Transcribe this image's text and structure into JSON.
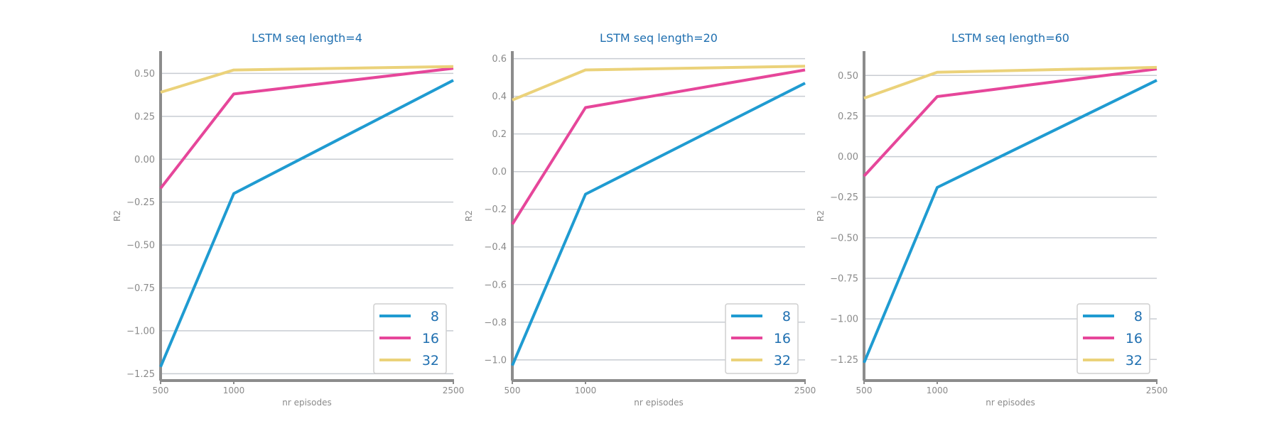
{
  "chart_data": [
    {
      "type": "line",
      "title": "LSTM seq length=4",
      "xlabel": "nr episodes",
      "ylabel": "R2",
      "x": [
        500,
        1000,
        2500
      ],
      "xticks": [
        "500",
        "1000",
        "2500"
      ],
      "xlim": [
        500,
        2500
      ],
      "ylim": [
        -1.29,
        0.63
      ],
      "yticks": [
        0.5,
        0.25,
        0.0,
        -0.25,
        -0.5,
        -0.75,
        -1.0,
        -1.25
      ],
      "ytick_labels": [
        "0.50",
        "0.25",
        "0.00",
        "−0.25",
        "−0.50",
        "−0.75",
        "−1.00",
        "−1.25"
      ],
      "grid": "horizontal",
      "legend": "lower-right",
      "series": [
        {
          "name": "8",
          "color": "#1f9bd1",
          "values": [
            -1.21,
            -0.2,
            0.46
          ]
        },
        {
          "name": "16",
          "color": "#e6469a",
          "values": [
            -0.17,
            0.38,
            0.53
          ]
        },
        {
          "name": "32",
          "color": "#ebd27a",
          "values": [
            0.39,
            0.52,
            0.54
          ]
        }
      ]
    },
    {
      "type": "line",
      "title": "LSTM seq length=20",
      "xlabel": "nr episodes",
      "ylabel": "R2",
      "x": [
        500,
        1000,
        2500
      ],
      "xticks": [
        "500",
        "1000",
        "2500"
      ],
      "xlim": [
        500,
        2500
      ],
      "ylim": [
        -1.11,
        0.64
      ],
      "yticks": [
        0.6,
        0.4,
        0.2,
        0.0,
        -0.2,
        -0.4,
        -0.6,
        -0.8,
        -1.0
      ],
      "ytick_labels": [
        "0.6",
        "0.4",
        "0.2",
        "0.0",
        "−0.2",
        "−0.4",
        "−0.6",
        "−0.8",
        "−1.0"
      ],
      "grid": "horizontal",
      "legend": "lower-right",
      "series": [
        {
          "name": "8",
          "color": "#1f9bd1",
          "values": [
            -1.03,
            -0.12,
            0.47
          ]
        },
        {
          "name": "16",
          "color": "#e6469a",
          "values": [
            -0.28,
            0.34,
            0.54
          ]
        },
        {
          "name": "32",
          "color": "#ebd27a",
          "values": [
            0.38,
            0.54,
            0.56
          ]
        }
      ]
    },
    {
      "type": "line",
      "title": "LSTM seq length=60",
      "xlabel": "nr episodes",
      "ylabel": "R2",
      "x": [
        500,
        1000,
        2500
      ],
      "xticks": [
        "500",
        "1000",
        "2500"
      ],
      "xlim": [
        500,
        2500
      ],
      "ylim": [
        -1.38,
        0.65
      ],
      "yticks": [
        0.5,
        0.25,
        0.0,
        -0.25,
        -0.5,
        -0.75,
        -1.0,
        -1.25
      ],
      "ytick_labels": [
        "0.50",
        "0.25",
        "0.00",
        "−0.25",
        "−0.50",
        "−0.75",
        "−1.00",
        "−1.25"
      ],
      "grid": "horizontal",
      "legend": "lower-right",
      "series": [
        {
          "name": "8",
          "color": "#1f9bd1",
          "values": [
            -1.27,
            -0.19,
            0.47
          ]
        },
        {
          "name": "16",
          "color": "#e6469a",
          "values": [
            -0.12,
            0.37,
            0.54
          ]
        },
        {
          "name": "32",
          "color": "#ebd27a",
          "values": [
            0.36,
            0.52,
            0.55
          ]
        }
      ]
    }
  ]
}
